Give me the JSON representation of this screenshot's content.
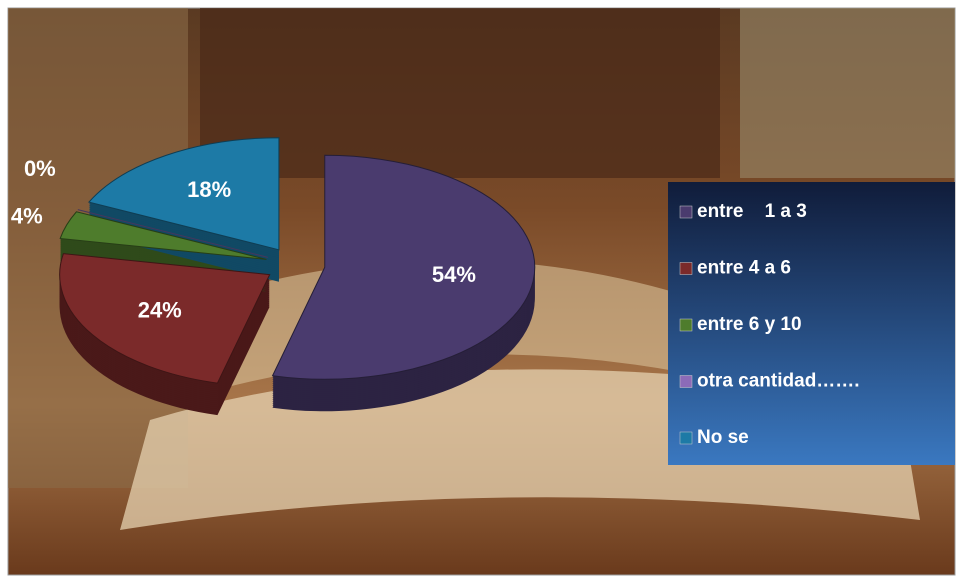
{
  "chart_data": {
    "type": "pie",
    "categories": [
      "entre    1 a 3",
      "entre 4 a 6",
      "entre 6 y 10",
      "otra cantidad…….",
      "No se"
    ],
    "values": [
      54,
      24,
      4,
      0,
      18
    ],
    "value_labels": [
      "54%",
      "24%",
      "4%",
      "0%",
      "18%"
    ],
    "colors": [
      "#4a3b6e",
      "#7b2a2a",
      "#4e7c2c",
      "#8c6bb8",
      "#1d7aa6"
    ],
    "legend": "right"
  }
}
